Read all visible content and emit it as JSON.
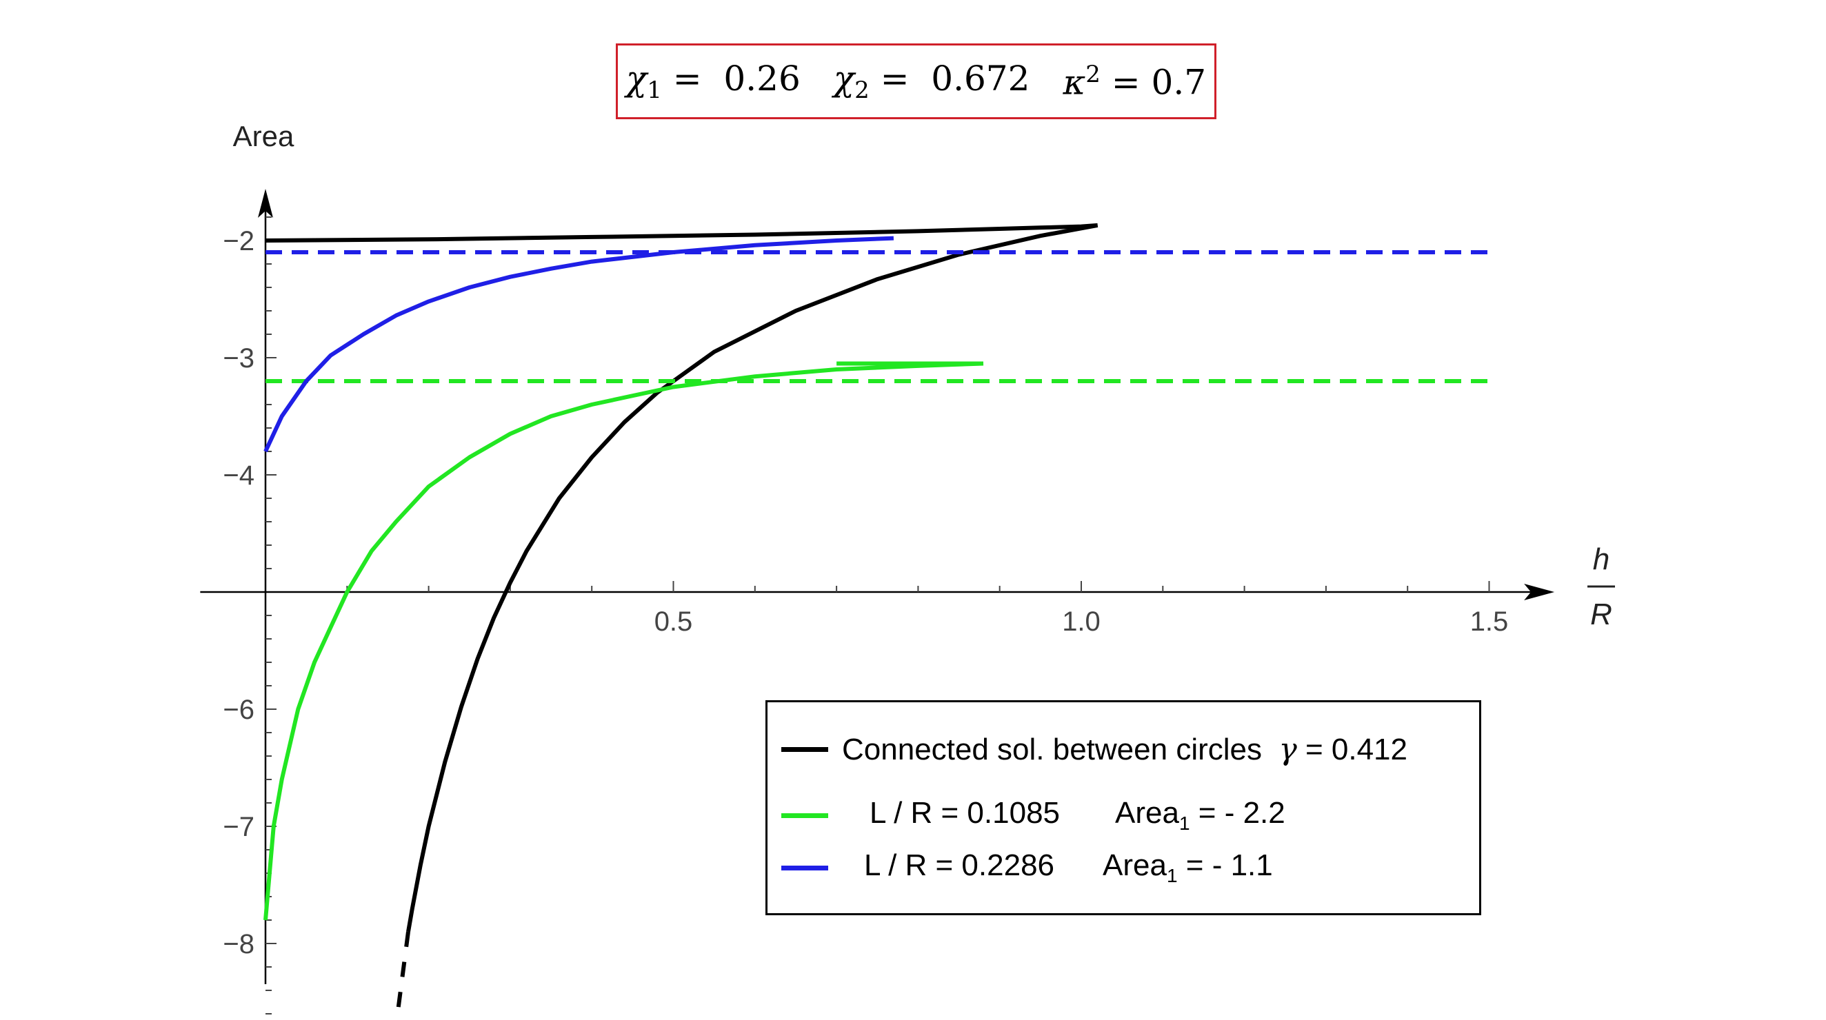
{
  "params": {
    "chi1_label": "χ",
    "chi1_sub": "1",
    "chi1_value": " =  0.26",
    "chi2_label": "χ",
    "chi2_sub": "2",
    "chi2_value": " =  0.672",
    "kappa_label": "κ",
    "kappa_sup": "2",
    "kappa_value": " = 0.7"
  },
  "legend": {
    "black_text": "Connected sol. between circles  ",
    "black_gamma": "γ",
    "black_value": " = 0.412",
    "green_lr": "L / R = 0.1085",
    "green_area": "Area",
    "green_area_sub": "1",
    "green_area_value": " = - 2.2",
    "blue_lr": "L / R = 0.2286",
    "blue_area": "Area",
    "blue_area_sub": "1",
    "blue_area_value": " = - 1.1"
  },
  "colors": {
    "black": "#000000",
    "green": "#22e622",
    "blue": "#1f1fe6",
    "box_border": "#d0202a"
  },
  "chart_data": {
    "type": "line",
    "xlabel_top": "h",
    "xlabel_bottom": "R",
    "ylabel": "Area",
    "xlim": [
      -0.08,
      1.58
    ],
    "ylim": [
      -8.7,
      -1.5
    ],
    "x_axis_crossing_y": -5,
    "x_ticks": [
      0.5,
      1.0,
      1.5
    ],
    "x_tick_labels": [
      "0.5",
      "1.0",
      "1.5"
    ],
    "y_ticks": [
      -2,
      -3,
      -4,
      -6,
      -7,
      -8
    ],
    "y_tick_labels": [
      "−2",
      "−3",
      "−4",
      "−6",
      "−7",
      "−8"
    ],
    "series": [
      {
        "name": "Connected sol. between circles γ = 0.412",
        "color": "#000000",
        "style": "solid",
        "x": [
          0.0,
          0.2,
          0.4,
          0.6,
          0.8,
          0.9,
          0.95,
          1.0,
          1.02
        ],
        "y": [
          -2.0,
          -1.99,
          -1.97,
          -1.95,
          -1.92,
          -1.9,
          -1.89,
          -1.88,
          -1.87
        ]
      },
      {
        "name": "",
        "color": "#000000",
        "style": "solid",
        "x": [
          1.02,
          0.95,
          0.85,
          0.75,
          0.65,
          0.55,
          0.48,
          0.44,
          0.4,
          0.36,
          0.32,
          0.3,
          0.28,
          0.26,
          0.24,
          0.22,
          0.2,
          0.19,
          0.18,
          0.175
        ],
        "y": [
          -1.87,
          -1.96,
          -2.12,
          -2.33,
          -2.6,
          -2.95,
          -3.3,
          -3.55,
          -3.85,
          -4.2,
          -4.65,
          -4.92,
          -5.22,
          -5.57,
          -5.98,
          -6.45,
          -7.0,
          -7.33,
          -7.7,
          -7.9
        ]
      },
      {
        "name": "",
        "color": "#000000",
        "style": "dashed",
        "x": [
          0.175,
          0.16
        ],
        "y": [
          -7.9,
          -8.7
        ]
      },
      {
        "name": "L / R = 0.1085 Area₁ = - 2.2",
        "color": "#22e622",
        "style": "solid",
        "x": [
          0.0,
          0.01,
          0.02,
          0.04,
          0.06,
          0.08,
          0.1,
          0.13,
          0.16,
          0.2,
          0.25,
          0.3,
          0.35,
          0.4,
          0.5,
          0.6,
          0.7,
          0.8,
          0.88
        ],
        "y": [
          -7.8,
          -7.0,
          -6.6,
          -6.0,
          -5.6,
          -5.3,
          -5.0,
          -4.65,
          -4.4,
          -4.1,
          -3.85,
          -3.65,
          -3.5,
          -3.4,
          -3.25,
          -3.16,
          -3.1,
          -3.07,
          -3.05
        ]
      },
      {
        "name": "",
        "color": "#22e622",
        "style": "solid",
        "x": [
          0.88,
          0.8,
          0.7
        ],
        "y": [
          -3.05,
          -3.05,
          -3.05
        ]
      },
      {
        "name": "",
        "color": "#22e622",
        "style": "dashed",
        "x": [
          0.0,
          1.5
        ],
        "y": [
          -3.2,
          -3.2
        ]
      },
      {
        "name": "L / R = 0.2286 Area₁ = - 1.1",
        "color": "#1f1fe6",
        "style": "solid",
        "x": [
          0.0,
          0.02,
          0.05,
          0.08,
          0.12,
          0.16,
          0.2,
          0.25,
          0.3,
          0.35,
          0.4,
          0.5,
          0.6,
          0.7,
          0.77
        ],
        "y": [
          -3.8,
          -3.5,
          -3.2,
          -2.98,
          -2.8,
          -2.64,
          -2.52,
          -2.4,
          -2.31,
          -2.24,
          -2.18,
          -2.1,
          -2.04,
          -2.0,
          -1.98
        ]
      },
      {
        "name": "",
        "color": "#1f1fe6",
        "style": "dashed",
        "x": [
          0.0,
          1.5
        ],
        "y": [
          -2.1,
          -2.1
        ]
      }
    ]
  }
}
